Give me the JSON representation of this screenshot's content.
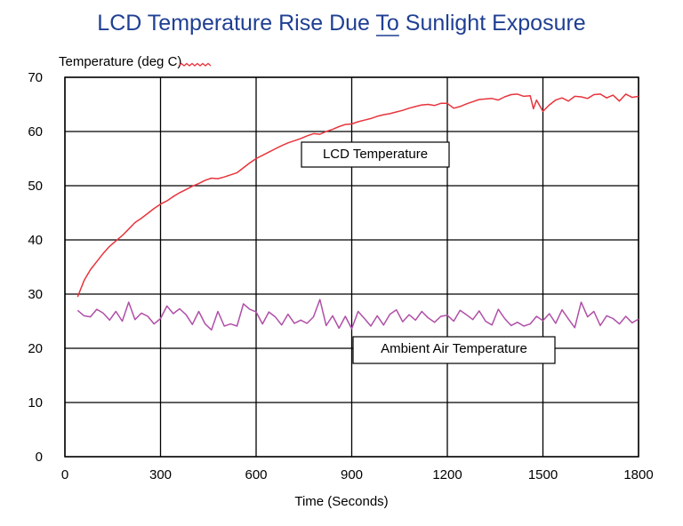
{
  "chart_data": {
    "type": "line",
    "title": "LCD Temperature Rise Due To Sunlight Exposure",
    "title_underlined_word": "To",
    "ylabel": "Temperature (deg C)",
    "xlabel": "Time (Seconds)",
    "xlim": [
      0,
      1800
    ],
    "ylim": [
      0,
      70
    ],
    "x_ticks": [
      0,
      300,
      600,
      900,
      1200,
      1500,
      1800
    ],
    "y_ticks": [
      0,
      10,
      20,
      30,
      40,
      50,
      60,
      70
    ],
    "grid": true,
    "legend": "none",
    "annotations": [
      {
        "text": "LCD Temperature",
        "series": "LCD Temperature"
      },
      {
        "text": "Ambient Air Temperature",
        "series": "Ambient Air Temperature"
      }
    ],
    "series": [
      {
        "name": "LCD Temperature",
        "color": "#e8343c",
        "x": [
          40,
          60,
          80,
          100,
          120,
          140,
          160,
          180,
          200,
          220,
          240,
          260,
          280,
          300,
          320,
          340,
          360,
          380,
          400,
          420,
          440,
          460,
          480,
          500,
          520,
          540,
          560,
          580,
          600,
          620,
          640,
          660,
          680,
          700,
          720,
          740,
          760,
          780,
          800,
          820,
          840,
          860,
          880,
          900,
          920,
          940,
          960,
          980,
          1000,
          1020,
          1040,
          1060,
          1080,
          1100,
          1120,
          1140,
          1160,
          1180,
          1200,
          1220,
          1240,
          1260,
          1280,
          1300,
          1320,
          1340,
          1360,
          1380,
          1400,
          1420,
          1440,
          1460,
          1470,
          1480,
          1500,
          1520,
          1540,
          1560,
          1580,
          1600,
          1620,
          1640,
          1660,
          1680,
          1700,
          1720,
          1740,
          1760,
          1780,
          1800
        ],
        "values": [
          29.5,
          32.5,
          34.5,
          36,
          37.5,
          38.8,
          39.8,
          40.8,
          42,
          43.2,
          44,
          44.9,
          45.8,
          46.6,
          47.2,
          48,
          48.7,
          49.3,
          49.9,
          50.4,
          51,
          51.4,
          51.3,
          51.6,
          52,
          52.4,
          53.3,
          54.2,
          55,
          55.6,
          56.2,
          56.8,
          57.4,
          57.9,
          58.3,
          58.7,
          59.2,
          59.6,
          59.5,
          60,
          60.4,
          60.9,
          61.3,
          61.4,
          61.8,
          62.1,
          62.4,
          62.8,
          63.1,
          63.3,
          63.6,
          63.9,
          64.3,
          64.6,
          64.9,
          65,
          64.8,
          65.2,
          65.2,
          64.3,
          64.6,
          65.1,
          65.5,
          65.9,
          66,
          66.1,
          65.8,
          66.4,
          66.8,
          66.9,
          66.5,
          66.6,
          64.2,
          65.8,
          63.7,
          64.9,
          65.8,
          66.2,
          65.6,
          66.5,
          66.4,
          66.1,
          66.8,
          66.9,
          66.2,
          66.7,
          65.6,
          66.9,
          66.3,
          66.5
        ]
      },
      {
        "name": "Ambient Air Temperature",
        "color": "#b04fa8",
        "x": [
          40,
          60,
          80,
          100,
          120,
          140,
          160,
          180,
          200,
          220,
          240,
          260,
          280,
          300,
          320,
          340,
          360,
          380,
          400,
          420,
          440,
          460,
          480,
          500,
          520,
          540,
          560,
          580,
          600,
          620,
          640,
          660,
          680,
          700,
          720,
          740,
          760,
          780,
          800,
          820,
          840,
          860,
          880,
          900,
          920,
          940,
          960,
          980,
          1000,
          1020,
          1040,
          1060,
          1080,
          1100,
          1120,
          1140,
          1160,
          1180,
          1200,
          1220,
          1240,
          1260,
          1280,
          1300,
          1320,
          1340,
          1360,
          1380,
          1400,
          1420,
          1440,
          1460,
          1480,
          1500,
          1520,
          1540,
          1560,
          1580,
          1600,
          1620,
          1640,
          1660,
          1680,
          1700,
          1720,
          1740,
          1760,
          1780,
          1800
        ],
        "values": [
          27,
          26,
          25.8,
          27.2,
          26.5,
          25.2,
          26.8,
          25,
          28.5,
          25.3,
          26.5,
          25.9,
          24.5,
          25.5,
          27.8,
          26.4,
          27.3,
          26.2,
          24.4,
          26.8,
          24.5,
          23.4,
          26.8,
          24.1,
          24.5,
          24.1,
          28.2,
          27.2,
          26.7,
          24.5,
          26.7,
          25.8,
          24.3,
          26.3,
          24.6,
          25.2,
          24.6,
          25.8,
          29,
          24.2,
          26,
          23.7,
          25.9,
          23.6,
          26.8,
          25.5,
          24.1,
          26,
          24.3,
          26.3,
          27.1,
          24.9,
          26.2,
          25.2,
          26.8,
          25.6,
          24.8,
          25.9,
          26.1,
          25,
          27,
          26.2,
          25.3,
          26.9,
          25,
          24.3,
          27.2,
          25.5,
          24.2,
          24.8,
          24.1,
          24.5,
          25.9,
          25.1,
          26.4,
          24.6,
          27.1,
          25.4,
          23.8,
          28.5,
          25.8,
          26.8,
          24.2,
          26,
          25.5,
          24.5,
          25.9,
          24.7,
          25.4
        ]
      }
    ]
  }
}
